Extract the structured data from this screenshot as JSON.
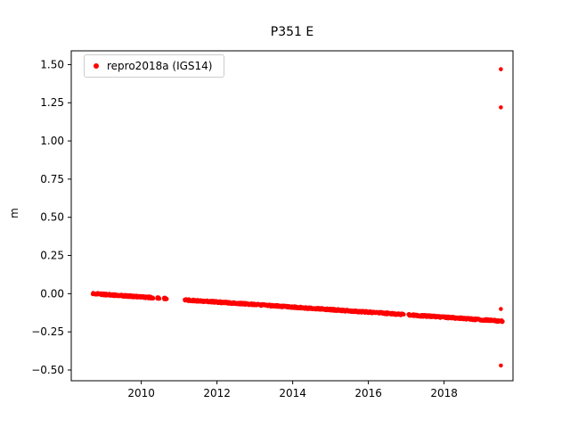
{
  "chart_data": {
    "type": "scatter",
    "title": "P351 E",
    "ylabel": "m",
    "xlim": [
      2008.15,
      2019.82
    ],
    "ylim": [
      -0.57,
      1.59
    ],
    "grid": false,
    "xticks": {
      "values": [
        2010,
        2012,
        2014,
        2016,
        2018
      ],
      "labels": [
        "2010",
        "2012",
        "2014",
        "2016",
        "2018"
      ]
    },
    "yticks": {
      "values": [
        -0.5,
        -0.25,
        0.0,
        0.25,
        0.5,
        0.75,
        1.0,
        1.25,
        1.5
      ],
      "labels": [
        "−0.50",
        "−0.25",
        "0.00",
        "0.25",
        "0.50",
        "0.75",
        "1.00",
        "1.25",
        "1.50"
      ]
    },
    "legend": {
      "position": "upper left",
      "entries": [
        {
          "label": "repro2018a (IGS14)",
          "color": "#ff0000",
          "marker": "dot"
        }
      ]
    },
    "series": [
      {
        "name": "repro2018a (IGS14)",
        "color": "#ff0000",
        "marker": "dot",
        "marker_radius_px": 2.3,
        "trend": {
          "x_start": 2008.72,
          "y_start": 0.0,
          "x_end": 2019.55,
          "y_end": -0.18
        },
        "segments": [
          [
            2008.72,
            2010.32
          ],
          [
            2010.42,
            2010.48
          ],
          [
            2010.6,
            2010.68
          ],
          [
            2011.15,
            2016.94
          ],
          [
            2017.06,
            2019.55
          ]
        ],
        "sample_step_years": 0.008,
        "jitter_m": 0.006,
        "outliers": [
          {
            "x": 2019.5,
            "y": 1.47
          },
          {
            "x": 2019.5,
            "y": 1.22
          },
          {
            "x": 2019.5,
            "y": -0.1
          },
          {
            "x": 2019.5,
            "y": -0.47
          }
        ]
      }
    ]
  }
}
